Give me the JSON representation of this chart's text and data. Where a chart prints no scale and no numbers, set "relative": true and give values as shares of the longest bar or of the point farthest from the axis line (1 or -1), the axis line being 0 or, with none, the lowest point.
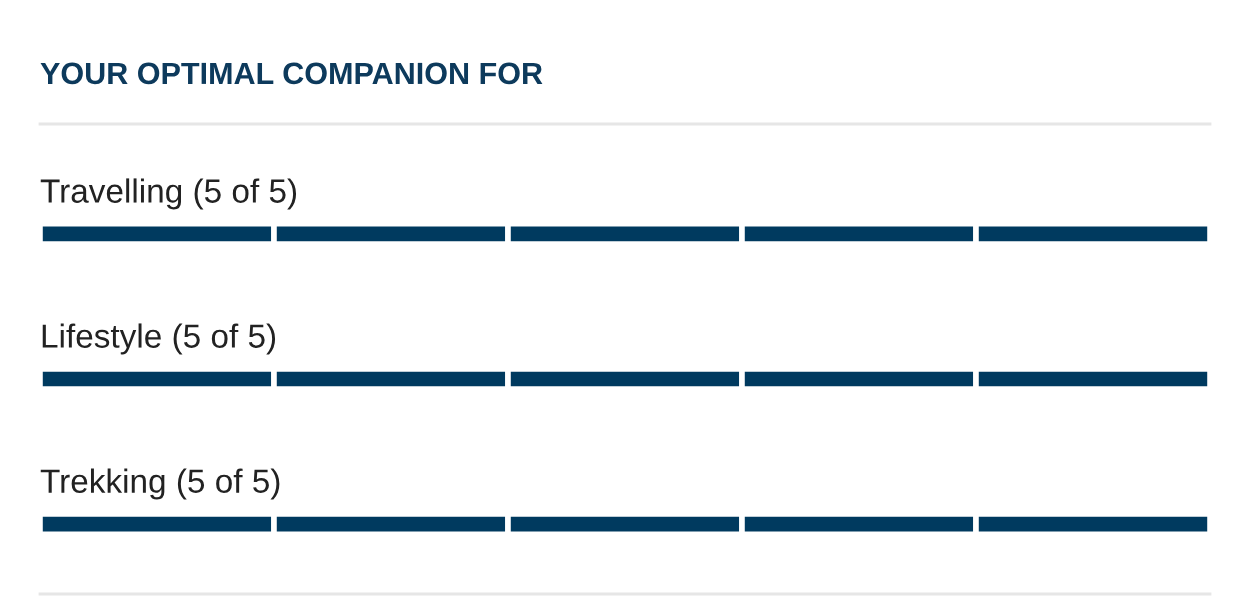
{
  "chart_data": {
    "type": "bar",
    "orientation": "horizontal",
    "stacked": true,
    "relative": true,
    "title": "YOUR OPTIMAL COMPANION FOR",
    "categories": [
      "Travelling (5 of 5)",
      "Lifestyle (5 of 5)",
      "Trekking (5 of 5)"
    ],
    "series": [
      {
        "color": "#003a5f",
        "values": [
          0.2,
          0.2,
          0.2
        ]
      },
      {
        "color": "#003a5f",
        "values": [
          0.2,
          0.2,
          0.2
        ]
      },
      {
        "color": "#003a5f",
        "values": [
          0.2,
          0.2,
          0.2
        ]
      },
      {
        "color": "#003a5f",
        "values": [
          0.2,
          0.2,
          0.2
        ]
      },
      {
        "color": "#003a5f",
        "values": [
          0.2,
          0.2,
          0.2
        ]
      }
    ]
  }
}
